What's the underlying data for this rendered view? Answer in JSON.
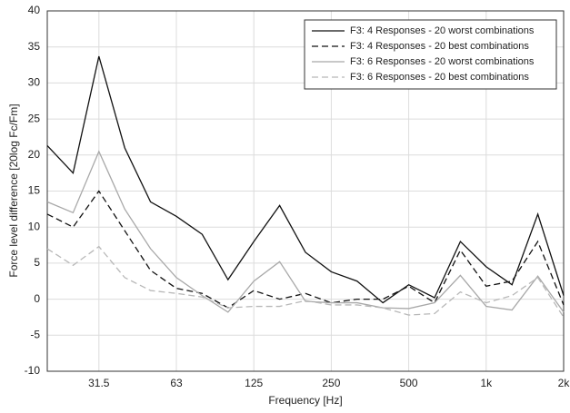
{
  "chart_data": {
    "type": "line",
    "xlabel": "Frequency [Hz]",
    "ylabel": "Force level difference [20log Fc/Fm]",
    "categories": [
      null,
      null,
      "31.5",
      null,
      null,
      "63",
      null,
      null,
      "125",
      null,
      null,
      "250",
      null,
      null,
      "500",
      null,
      null,
      "1k",
      null,
      null,
      "2k"
    ],
    "ylim": [
      -10,
      40
    ],
    "yticks": [
      -10,
      -5,
      0,
      5,
      10,
      15,
      20,
      25,
      30,
      35,
      40
    ],
    "grid": true,
    "legend": "upper right",
    "series": [
      {
        "name": "F3: 4 Responses - 20 worst combinations",
        "color": "#111111",
        "style": "solid",
        "values": [
          21.3,
          17.5,
          33.7,
          21,
          13.5,
          11.5,
          9,
          2.7,
          8,
          13,
          6.5,
          3.8,
          2.5,
          -0.5,
          2,
          0.2,
          8,
          4.5,
          2,
          11.8,
          0.5
        ]
      },
      {
        "name": "F3: 4 Responses - 20 best combinations",
        "color": "#111111",
        "style": "dashed",
        "values": [
          11.8,
          10,
          15,
          9.5,
          4,
          1.5,
          0.8,
          -1.2,
          1.2,
          0,
          0.8,
          -0.5,
          0,
          0,
          1.8,
          -0.5,
          6.8,
          1.8,
          2.5,
          8,
          -0.8
        ]
      },
      {
        "name": "F3: 6 Responses - 20 worst combinations",
        "color": "#a8a8a8",
        "style": "solid",
        "values": [
          13.5,
          12,
          20.5,
          12.5,
          7,
          3,
          0.5,
          -1.8,
          2.5,
          5.2,
          -0.3,
          -0.5,
          -0.5,
          -1.2,
          -1.3,
          -0.5,
          3.3,
          -1,
          -1.5,
          3.2,
          -1.8
        ]
      },
      {
        "name": "F3: 6 Responses - 20 best combinations",
        "color": "#b8b8b8",
        "style": "dashed",
        "values": [
          7,
          4.7,
          7.3,
          3,
          1.2,
          0.8,
          0.3,
          -1.2,
          -1,
          -1,
          -0.2,
          -0.8,
          -0.8,
          -1.2,
          -2.2,
          -2,
          1,
          -0.5,
          0.5,
          3,
          -2.5
        ]
      }
    ]
  }
}
